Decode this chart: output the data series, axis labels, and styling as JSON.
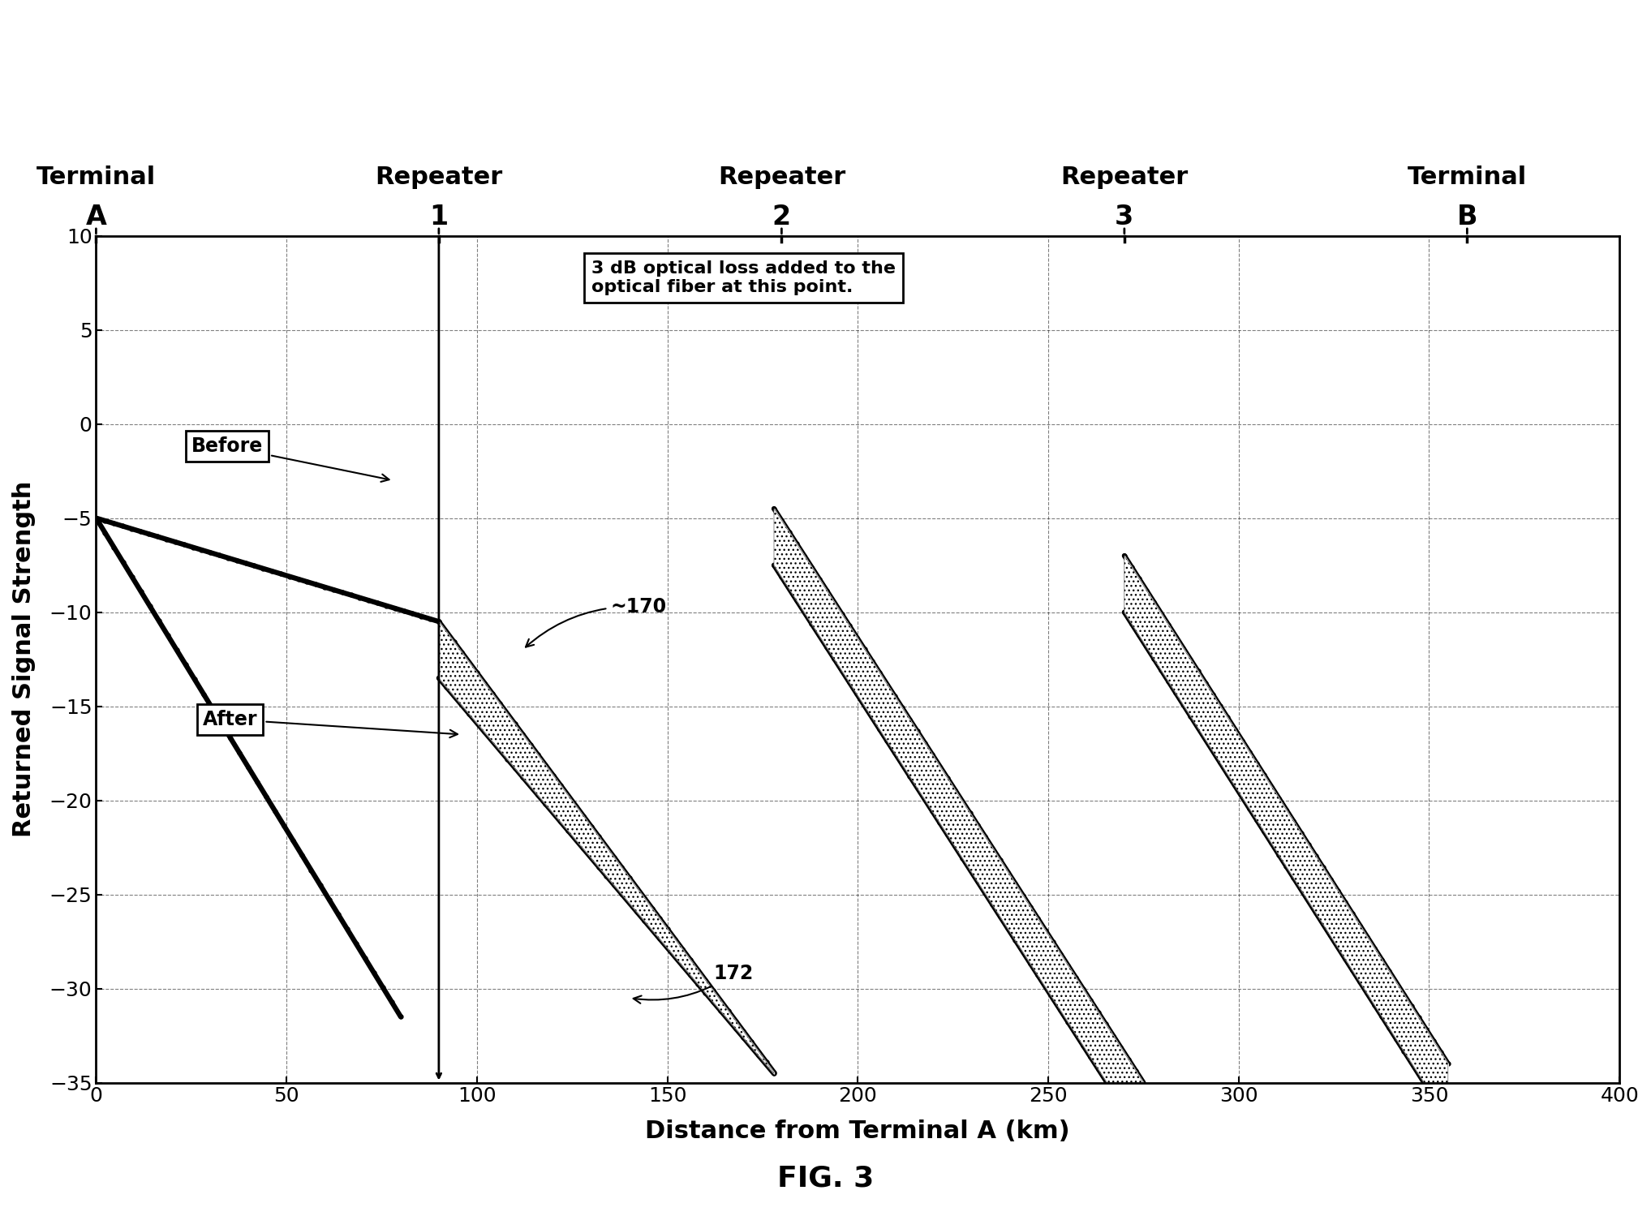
{
  "title": "FIG. 3",
  "xlabel": "Distance from Terminal A (km)",
  "ylabel": "Returned Signal Strength",
  "xlim": [
    0,
    400
  ],
  "ylim": [
    -35,
    10
  ],
  "xticks": [
    0,
    50,
    100,
    150,
    200,
    250,
    300,
    350,
    400
  ],
  "yticks": [
    -35,
    -30,
    -25,
    -20,
    -15,
    -10,
    -5,
    0,
    5,
    10
  ],
  "terminal_a_x": 0,
  "repeater1_x": 90,
  "repeater2_x": 180,
  "repeater3_x": 270,
  "terminal_b_x": 360,
  "background_color": "#ffffff",
  "line_color": "#000000",
  "annotation_box_color": "#ffffff",
  "annotation_text": "3 dB optical loss added to the\noptical fiber at this point.",
  "label_before": "Before",
  "label_after": "After",
  "label_170": "~170",
  "label_172": "172",
  "fig_label": "FIG. 3",
  "top_labels": [
    "Terminal",
    "Repeater",
    "Repeater",
    "Repeater",
    "Terminal"
  ],
  "top_numbers": [
    "A",
    "1",
    "2",
    "3",
    "B"
  ],
  "top_x_positions": [
    0,
    90,
    180,
    270,
    360
  ]
}
